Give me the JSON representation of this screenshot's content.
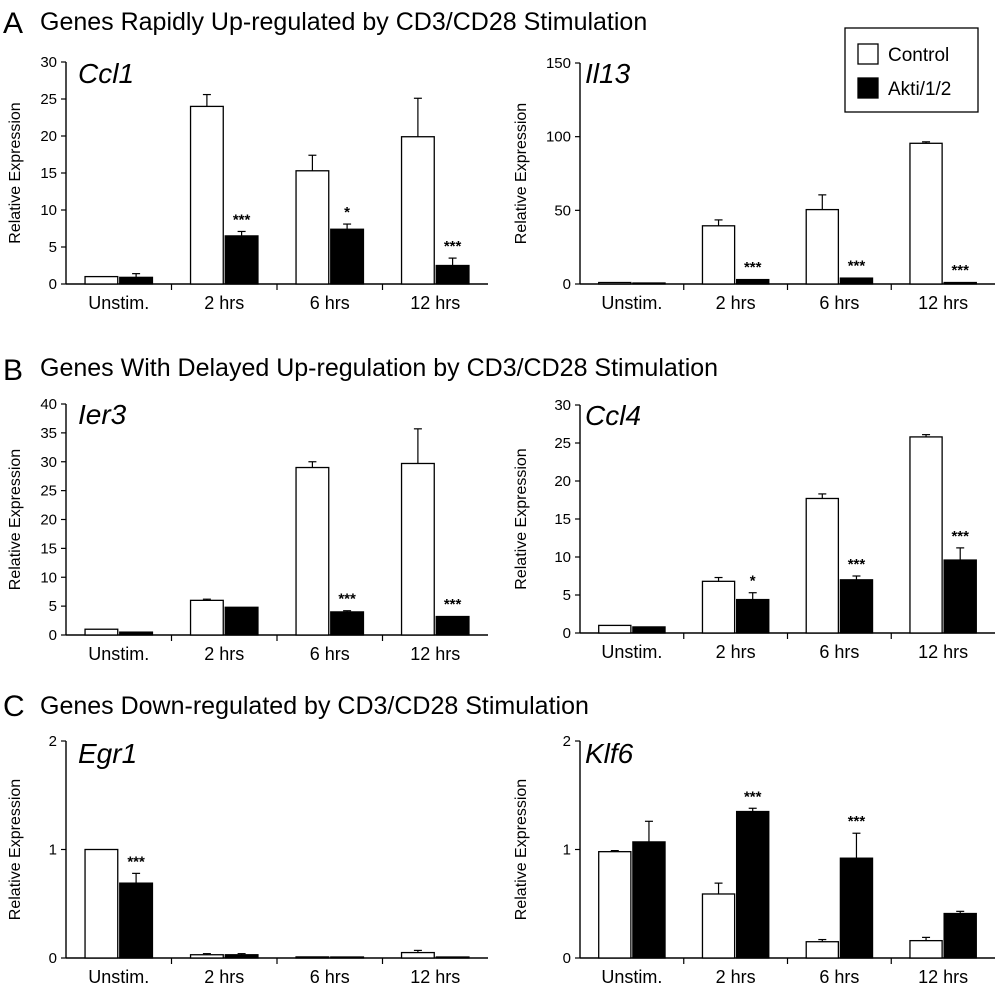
{
  "sections": [
    {
      "letter": "A",
      "title": "Genes Rapidly Up-regulated by CD3/CD28 Stimulation"
    },
    {
      "letter": "B",
      "title": "Genes With Delayed Up-regulation by CD3/CD28 Stimulation"
    },
    {
      "letter": "C",
      "title": "Genes Down-regulated by CD3/CD28 Stimulation"
    }
  ],
  "legend": {
    "entries": [
      {
        "label": "Control",
        "color": "#ffffff"
      },
      {
        "label": "Akti/1/2",
        "color": "#000000"
      }
    ]
  },
  "chart_data": [
    {
      "type": "bar",
      "section": "A",
      "title": "Ccl1",
      "ylabel": "Relative Expression",
      "ylim": [
        0,
        30
      ],
      "yticks": [
        "0",
        "5",
        "10",
        "15",
        "20",
        "25",
        "30"
      ],
      "categories": [
        "Unstim.",
        "2 hrs",
        "6 hrs",
        "12 hrs"
      ],
      "series": [
        {
          "name": "Control",
          "values": [
            1.0,
            24.0,
            15.3,
            19.9
          ],
          "errors": [
            0.1,
            1.6,
            2.1,
            5.2
          ]
        },
        {
          "name": "Akti/1/2",
          "values": [
            0.9,
            6.5,
            7.4,
            2.5
          ],
          "errors": [
            0.5,
            0.6,
            0.7,
            1.0
          ]
        }
      ],
      "annotations": [
        "",
        "***",
        "*",
        "***"
      ]
    },
    {
      "type": "bar",
      "section": "A",
      "title": "Il13",
      "ylabel": "Relative Expression",
      "ylim": [
        0,
        150
      ],
      "yticks": [
        "0",
        "50",
        "100",
        "150"
      ],
      "categories": [
        "Unstim.",
        "2 hrs",
        "6 hrs",
        "12 hrs"
      ],
      "series": [
        {
          "name": "Control",
          "values": [
            1.0,
            39.5,
            50.5,
            95.5
          ],
          "errors": [
            0.2,
            4.0,
            10.0,
            1.0
          ]
        },
        {
          "name": "Akti/1/2",
          "values": [
            0.5,
            3.0,
            4.0,
            1.0
          ],
          "errors": [
            0.1,
            0.5,
            0.5,
            0.2
          ]
        }
      ],
      "annotations": [
        "",
        "***",
        "***",
        "***"
      ]
    },
    {
      "type": "bar",
      "section": "B",
      "title": "Ier3",
      "ylabel": "Relative Expression",
      "ylim": [
        0,
        40
      ],
      "yticks": [
        "0",
        "5",
        "10",
        "15",
        "20",
        "25",
        "30",
        "35",
        "40"
      ],
      "categories": [
        "Unstim.",
        "2 hrs",
        "6 hrs",
        "12 hrs"
      ],
      "series": [
        {
          "name": "Control",
          "values": [
            1.0,
            6.0,
            29.0,
            29.7
          ],
          "errors": [
            0.1,
            0.2,
            1.0,
            6.0
          ]
        },
        {
          "name": "Akti/1/2",
          "values": [
            0.5,
            4.8,
            4.0,
            3.2
          ],
          "errors": [
            0.1,
            0.1,
            0.2,
            0.1
          ]
        }
      ],
      "annotations": [
        "",
        "",
        "***",
        "***"
      ]
    },
    {
      "type": "bar",
      "section": "B",
      "title": "Ccl4",
      "ylabel": "Relative Expression",
      "ylim": [
        0,
        30
      ],
      "yticks": [
        "0",
        "5",
        "10",
        "15",
        "20",
        "25",
        "30"
      ],
      "categories": [
        "Unstim.",
        "2 hrs",
        "6 hrs",
        "12 hrs"
      ],
      "series": [
        {
          "name": "Control",
          "values": [
            1.0,
            6.8,
            17.7,
            25.8
          ],
          "errors": [
            0.1,
            0.5,
            0.6,
            0.3
          ]
        },
        {
          "name": "Akti/1/2",
          "values": [
            0.8,
            4.4,
            7.0,
            9.6
          ],
          "errors": [
            0.1,
            0.9,
            0.5,
            1.6
          ]
        }
      ],
      "annotations": [
        "",
        "*",
        "***",
        "***"
      ]
    },
    {
      "type": "bar",
      "section": "C",
      "title": "Egr1",
      "ylabel": "Relative Expression",
      "ylim": [
        0,
        2
      ],
      "yticks": [
        "0",
        "1",
        "2"
      ],
      "categories": [
        "Unstim.",
        "2 hrs",
        "6 hrs",
        "12 hrs"
      ],
      "series": [
        {
          "name": "Control",
          "values": [
            1.0,
            0.03,
            0.01,
            0.05
          ],
          "errors": [
            0.005,
            0.01,
            0.003,
            0.02
          ]
        },
        {
          "name": "Akti/1/2",
          "values": [
            0.69,
            0.03,
            0.005,
            0.005
          ],
          "errors": [
            0.09,
            0.01,
            0.002,
            0.002
          ]
        }
      ],
      "annotations": [
        "***",
        "",
        "",
        ""
      ]
    },
    {
      "type": "bar",
      "section": "C",
      "title": "Klf6",
      "ylabel": "Relative Expression",
      "ylim": [
        0,
        2
      ],
      "yticks": [
        "0",
        "1",
        "2"
      ],
      "categories": [
        "Unstim.",
        "2 hrs",
        "6 hrs",
        "12 hrs"
      ],
      "series": [
        {
          "name": "Control",
          "values": [
            0.98,
            0.59,
            0.15,
            0.16
          ],
          "errors": [
            0.01,
            0.1,
            0.02,
            0.03
          ]
        },
        {
          "name": "Akti/1/2",
          "values": [
            1.07,
            1.35,
            0.92,
            0.41
          ],
          "errors": [
            0.19,
            0.03,
            0.23,
            0.02
          ]
        }
      ],
      "annotations": [
        "",
        "***",
        "***",
        ""
      ]
    }
  ]
}
